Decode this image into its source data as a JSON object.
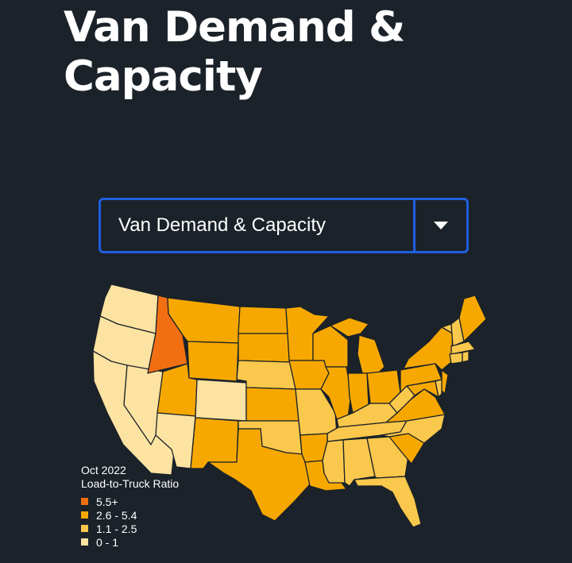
{
  "page": {
    "title_line1": "Van Demand &",
    "title_line2": "Capacity"
  },
  "dropdown": {
    "selected": "Van Demand & Capacity",
    "icon": "caret-down-icon"
  },
  "map": {
    "period": "Oct 2022",
    "metric": "Load-to-Truck Ratio",
    "legend": [
      {
        "label": "5.5+",
        "color": "#f26f11"
      },
      {
        "label": "2.6 - 5.4",
        "color": "#f7a800"
      },
      {
        "label": "1.1 - 2.5",
        "color": "#fac84c"
      },
      {
        "label": "0 - 1",
        "color": "#fde3a1"
      }
    ],
    "highlighted_state": {
      "name": "Idaho",
      "class": "5.5+"
    }
  },
  "colors": {
    "background": "#1b2229",
    "accent": "#1f5fe0"
  }
}
